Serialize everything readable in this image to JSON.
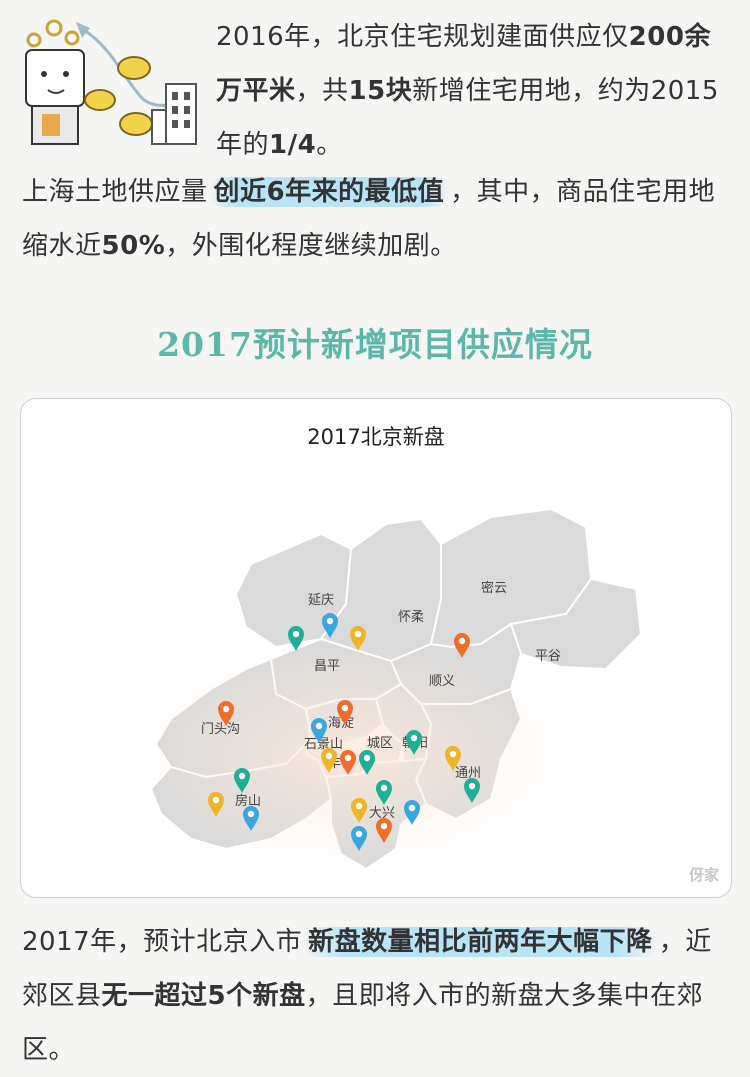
{
  "para1": {
    "t1": "2016年，北京住宅规划建面供应仅",
    "b1": "200余万平米",
    "t2": "，共",
    "b2": "15块",
    "t3": "新增住宅用地，约为2015年的",
    "b3": "1/4",
    "t4": "。"
  },
  "para2": {
    "t1": "上海土地供应量",
    "hl": "创近6年来的最低值",
    "t2": "，其中，商品住宅用地缩水近",
    "b1": "50%",
    "t3": "，外围化程度继续加剧。"
  },
  "section_title": "2017预计新增项目供应情况",
  "map_card": {
    "title": "2017北京新盘",
    "watermark": "伢家",
    "district_labels": {
      "yanqing": "延庆",
      "huairou": "怀柔",
      "miyun": "密云",
      "pinggu": "平谷",
      "changping": "昌平",
      "shunyi": "顺义",
      "mentougou": "门头沟",
      "haidian": "海淀",
      "shijingshan": "石景山",
      "chengqu": "城区",
      "chaoyang": "朝阳",
      "fengtai": "丰台",
      "tongzhou": "通州",
      "fangshan": "房山",
      "daxing": "大兴"
    },
    "pin_colors": {
      "teal": "#1fae96",
      "blue": "#3aa6e0",
      "yellow": "#f0b429",
      "orange": "#ef6d2b"
    }
  },
  "para3": {
    "t1": "2017年，预计北京入市",
    "hl": "新盘数量相比前两年大幅下降",
    "t2": "，近郊区县",
    "b1": "无一超过5个新盘",
    "t3": "，且即将入市的新盘大多集中在郊区。"
  }
}
